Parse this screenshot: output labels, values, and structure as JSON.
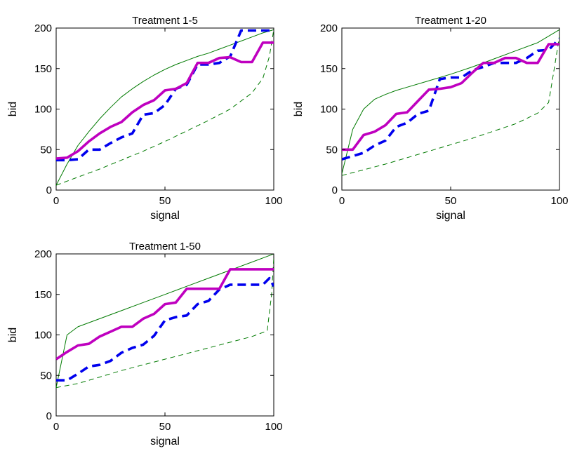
{
  "colors": {
    "solid_thick": "#bf00bf",
    "dashed_thick": "#0000ee",
    "thin_green": "#007a00"
  },
  "chart_data": [
    {
      "type": "line",
      "title": "Treatment 1-5",
      "xlabel": "signal",
      "ylabel": "bid",
      "xlim": [
        0,
        100
      ],
      "ylim": [
        0,
        200
      ],
      "xticks": [
        "0",
        "50",
        "100"
      ],
      "yticks": [
        "0",
        "50",
        "100",
        "150",
        "200"
      ],
      "grid": false,
      "series": [
        {
          "style": "thin-solid",
          "color": "#007a00",
          "x": [
            0,
            5,
            10,
            15,
            20,
            25,
            30,
            35,
            40,
            45,
            50,
            55,
            60,
            65,
            70,
            75,
            80,
            85,
            90,
            95,
            100
          ],
          "y": [
            6,
            32,
            55,
            72,
            88,
            102,
            115,
            125,
            134,
            142,
            149,
            155,
            160,
            165,
            169,
            174,
            179,
            184,
            189,
            194,
            198
          ]
        },
        {
          "style": "thin-dashed",
          "color": "#007a00",
          "x": [
            0,
            10,
            20,
            30,
            40,
            50,
            60,
            70,
            80,
            90,
            95,
            98,
            100
          ],
          "y": [
            6,
            16,
            26,
            37,
            48,
            60,
            73,
            86,
            100,
            120,
            138,
            165,
            198
          ]
        },
        {
          "style": "thick-dashed",
          "color": "#0000ee",
          "x": [
            0,
            5,
            10,
            15,
            20,
            25,
            30,
            35,
            40,
            45,
            50,
            55,
            60,
            65,
            70,
            75,
            80,
            85,
            90,
            95,
            100
          ],
          "y": [
            37,
            37,
            38,
            50,
            50,
            58,
            65,
            70,
            93,
            95,
            105,
            125,
            130,
            155,
            155,
            157,
            165,
            197,
            197,
            197,
            197
          ]
        },
        {
          "style": "thick-solid",
          "color": "#bf00bf",
          "x": [
            0,
            5,
            10,
            15,
            20,
            25,
            30,
            35,
            40,
            45,
            50,
            55,
            60,
            65,
            70,
            75,
            80,
            85,
            90,
            95,
            100
          ],
          "y": [
            39,
            40,
            48,
            60,
            70,
            78,
            84,
            96,
            105,
            111,
            123,
            125,
            132,
            157,
            157,
            163,
            164,
            158,
            158,
            182,
            182
          ]
        }
      ]
    },
    {
      "type": "line",
      "title": "Treatment 1-20",
      "xlabel": "signal",
      "ylabel": "bid",
      "xlim": [
        0,
        100
      ],
      "ylim": [
        0,
        200
      ],
      "xticks": [
        "0",
        "50",
        "100"
      ],
      "yticks": [
        "0",
        "50",
        "100",
        "150",
        "200"
      ],
      "grid": false,
      "series": [
        {
          "style": "thin-solid",
          "color": "#007a00",
          "x": [
            0,
            5,
            10,
            15,
            20,
            25,
            30,
            40,
            50,
            60,
            70,
            80,
            90,
            100
          ],
          "y": [
            20,
            75,
            100,
            112,
            118,
            123,
            127,
            135,
            143,
            152,
            162,
            172,
            182,
            198
          ]
        },
        {
          "style": "thin-dashed",
          "color": "#007a00",
          "x": [
            0,
            20,
            40,
            60,
            80,
            90,
            95,
            97,
            100
          ],
          "y": [
            18,
            32,
            48,
            64,
            82,
            95,
            108,
            140,
            190
          ]
        },
        {
          "style": "thick-dashed",
          "color": "#0000ee",
          "x": [
            0,
            5,
            10,
            15,
            20,
            25,
            30,
            35,
            40,
            45,
            50,
            55,
            60,
            65,
            70,
            75,
            80,
            85,
            90,
            95,
            100
          ],
          "y": [
            38,
            42,
            46,
            55,
            61,
            78,
            83,
            94,
            98,
            137,
            139,
            139,
            148,
            152,
            157,
            157,
            157,
            163,
            172,
            173,
            187
          ]
        },
        {
          "style": "thick-solid",
          "color": "#bf00bf",
          "x": [
            0,
            5,
            10,
            15,
            20,
            25,
            30,
            35,
            40,
            45,
            50,
            55,
            60,
            65,
            70,
            75,
            80,
            85,
            90,
            95,
            100
          ],
          "y": [
            50,
            50,
            68,
            72,
            80,
            94,
            96,
            110,
            124,
            125,
            127,
            132,
            145,
            157,
            157,
            163,
            163,
            157,
            157,
            180,
            180
          ]
        }
      ]
    },
    {
      "type": "line",
      "title": "Treatment 1-50",
      "xlabel": "signal",
      "ylabel": "bid",
      "xlim": [
        0,
        100
      ],
      "ylim": [
        0,
        200
      ],
      "xticks": [
        "0",
        "50",
        "100"
      ],
      "yticks": [
        "0",
        "50",
        "100",
        "150",
        "200"
      ],
      "grid": false,
      "series": [
        {
          "style": "thin-solid",
          "color": "#007a00",
          "x": [
            0,
            5,
            10,
            20,
            30,
            40,
            50,
            60,
            70,
            80,
            90,
            100
          ],
          "y": [
            35,
            100,
            110,
            120,
            130,
            140,
            150,
            160,
            170,
            180,
            190,
            200
          ]
        },
        {
          "style": "thin-dashed",
          "color": "#007a00",
          "x": [
            0,
            10,
            20,
            30,
            40,
            50,
            60,
            70,
            80,
            90,
            97,
            99,
            100
          ],
          "y": [
            35,
            40,
            48,
            56,
            63,
            70,
            77,
            84,
            91,
            98,
            105,
            150,
            195
          ]
        },
        {
          "style": "thick-dashed",
          "color": "#0000ee",
          "x": [
            0,
            5,
            10,
            15,
            20,
            25,
            30,
            35,
            40,
            45,
            50,
            55,
            60,
            65,
            70,
            75,
            80,
            85,
            90,
            95,
            98,
            100
          ],
          "y": [
            44,
            44,
            52,
            61,
            63,
            68,
            78,
            84,
            88,
            99,
            118,
            122,
            124,
            138,
            142,
            156,
            162,
            162,
            162,
            162,
            170,
            160
          ]
        },
        {
          "style": "thick-solid",
          "color": "#bf00bf",
          "x": [
            0,
            5,
            10,
            15,
            20,
            25,
            30,
            35,
            40,
            45,
            50,
            55,
            60,
            65,
            70,
            75,
            80,
            85,
            90,
            95,
            100
          ],
          "y": [
            70,
            79,
            87,
            89,
            98,
            104,
            110,
            110,
            120,
            126,
            138,
            140,
            157,
            157,
            157,
            157,
            181,
            181,
            181,
            181,
            181
          ]
        }
      ]
    }
  ]
}
